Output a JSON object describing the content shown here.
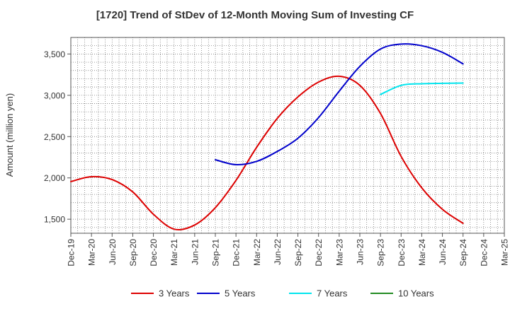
{
  "chart_data": {
    "type": "line",
    "title": "[1720]  Trend of StDev of 12-Month Moving Sum of Investing CF",
    "xlabel": "",
    "ylabel": "Amount (million yen)",
    "ylim": [
      1330,
      3700
    ],
    "y_ticks": [
      1500,
      2000,
      2500,
      3000,
      3500
    ],
    "y_tick_labels": [
      "1,500",
      "2,000",
      "2,500",
      "3,000",
      "3,500"
    ],
    "x_tick_labels": [
      "Dec-19",
      "Mar-20",
      "Jun-20",
      "Sep-20",
      "Dec-20",
      "Mar-21",
      "Jun-21",
      "Sep-21",
      "Dec-21",
      "Mar-22",
      "Jun-22",
      "Sep-22",
      "Dec-22",
      "Mar-23",
      "Jun-23",
      "Sep-23",
      "Dec-23",
      "Mar-24",
      "Jun-24",
      "Sep-24",
      "Dec-24",
      "Mar-25"
    ],
    "grid": true,
    "legend_position": "bottom",
    "series": [
      {
        "name": "3 Years",
        "color": "#dd0000",
        "x": [
          "Dec-19",
          "Mar-20",
          "Jun-20",
          "Sep-20",
          "Dec-20",
          "Mar-21",
          "Jun-21",
          "Sep-21",
          "Dec-21",
          "Mar-22",
          "Jun-22",
          "Sep-22",
          "Dec-22",
          "Mar-23",
          "Jun-23",
          "Sep-23",
          "Dec-23",
          "Mar-24",
          "Jun-24",
          "Sep-24"
        ],
        "values": [
          1955,
          2015,
          1980,
          1830,
          1560,
          1380,
          1430,
          1640,
          1970,
          2370,
          2720,
          2980,
          3160,
          3230,
          3120,
          2780,
          2260,
          1880,
          1620,
          1450
        ]
      },
      {
        "name": "5 Years",
        "color": "#0000cc",
        "x": [
          "Sep-21",
          "Dec-21",
          "Mar-22",
          "Jun-22",
          "Sep-22",
          "Dec-22",
          "Mar-23",
          "Jun-23",
          "Sep-23",
          "Dec-23",
          "Mar-24",
          "Jun-24",
          "Sep-24"
        ],
        "values": [
          2220,
          2160,
          2200,
          2320,
          2480,
          2730,
          3050,
          3350,
          3560,
          3620,
          3600,
          3520,
          3380
        ]
      },
      {
        "name": "7 Years",
        "color": "#00e5ee",
        "x": [
          "Sep-23",
          "Dec-23",
          "Mar-24",
          "Jun-24",
          "Sep-24"
        ],
        "values": [
          3010,
          3120,
          3140,
          3145,
          3148
        ]
      },
      {
        "name": "10 Years",
        "color": "#228b22",
        "x": [],
        "values": []
      }
    ]
  }
}
